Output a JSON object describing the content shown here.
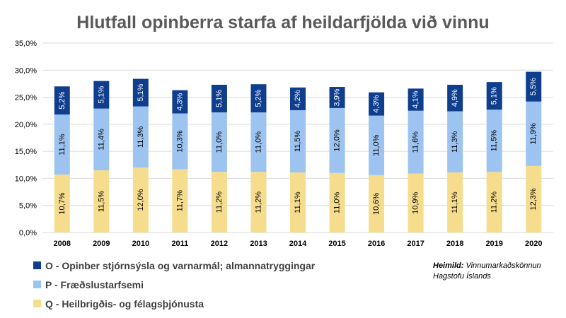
{
  "chart_data": {
    "type": "bar",
    "stacked": true,
    "title": "Hlutfall opinberra starfa af heildarfjölda við vinnu",
    "categories": [
      "2008",
      "2009",
      "2010",
      "2011",
      "2012",
      "2013",
      "2014",
      "2015",
      "2016",
      "2017",
      "2018",
      "2019",
      "2020"
    ],
    "ylim": [
      0,
      35
    ],
    "yticks": [
      "0,0%",
      "5,0%",
      "10,0%",
      "15,0%",
      "20,0%",
      "25,0%",
      "30,0%",
      "35,0%"
    ],
    "grid": true,
    "legend_position": "bottom-left",
    "series": [
      {
        "name": "Q - Heilbrigðis- og félagsþjónusta",
        "color": "#f5dd8d",
        "values": [
          10.7,
          11.5,
          12.0,
          11.7,
          11.2,
          11.2,
          11.1,
          11.0,
          10.6,
          10.9,
          11.1,
          11.2,
          12.3
        ],
        "labels": [
          "10,7%",
          "11,5%",
          "12,0%",
          "11,7%",
          "11,2%",
          "11,2%",
          "11,1%",
          "11,0%",
          "10,6%",
          "10,9%",
          "11,1%",
          "11,2%",
          "12,3%"
        ]
      },
      {
        "name": "P - Fræðslustarfsemi",
        "color": "#9dc3f0",
        "values": [
          11.1,
          11.4,
          11.3,
          10.3,
          11.0,
          11.0,
          11.5,
          12.0,
          11.0,
          11.6,
          11.3,
          11.5,
          11.9
        ],
        "labels": [
          "11,1%",
          "11,4%",
          "11,3%",
          "10,3%",
          "11,0%",
          "11,0%",
          "11,5%",
          "12,0%",
          "11,0%",
          "11,6%",
          "11,3%",
          "11,5%",
          "11,9%"
        ]
      },
      {
        "name": "O - Opinber stjórnsýsla og varnarmál; almannatryggingar",
        "color": "#0f3e8f",
        "values": [
          5.2,
          5.1,
          5.1,
          4.3,
          5.1,
          5.2,
          4.2,
          3.9,
          4.3,
          4.1,
          4.9,
          5.1,
          5.5
        ],
        "labels": [
          "5,2%",
          "5,1%",
          "5,1%",
          "4,3%",
          "5,1%",
          "5,2%",
          "4,2%",
          "3,9%",
          "4,3%",
          "4,1%",
          "4,9%",
          "5,1%",
          "5,5%"
        ]
      }
    ]
  },
  "legend": {
    "items": [
      {
        "label": "O - Opinber stjórnsýsla og varnarmál; almannatryggingar",
        "color": "#0f3e8f"
      },
      {
        "label": "P - Fræðslustarfsemi",
        "color": "#9dc3f0"
      },
      {
        "label": "Q - Heilbrigðis- og félagsþjónusta",
        "color": "#f5dd8d"
      }
    ]
  },
  "source": {
    "label": "Heimild:",
    "line1": "Vinnumarkaðskönnun",
    "line2": "Hagstofu Íslands"
  }
}
